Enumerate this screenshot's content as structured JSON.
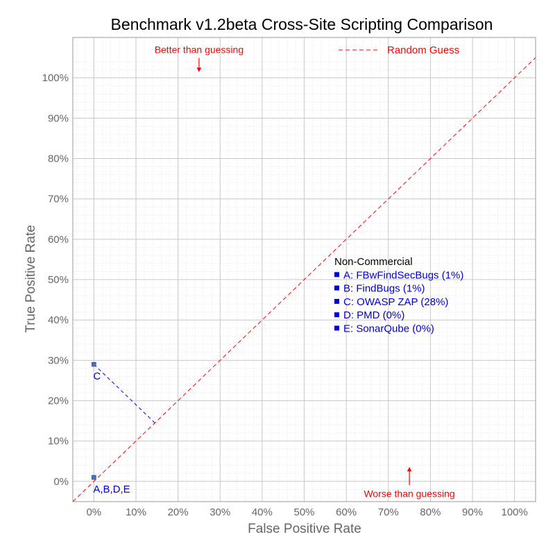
{
  "chart_data": {
    "type": "scatter",
    "title": "Benchmark v1.2beta Cross-Site Scripting Comparison",
    "xlabel": "False Positive Rate",
    "ylabel": "True Positive Rate",
    "xlim": [
      -0.05,
      1.05
    ],
    "ylim": [
      -0.05,
      1.1
    ],
    "x_ticks": [
      0,
      0.1,
      0.2,
      0.3,
      0.4,
      0.5,
      0.6,
      0.7,
      0.8,
      0.9,
      1.0
    ],
    "y_ticks": [
      0,
      0.1,
      0.2,
      0.3,
      0.4,
      0.5,
      0.6,
      0.7,
      0.8,
      0.9,
      1.0
    ],
    "x_tick_labels": [
      "0%",
      "10%",
      "20%",
      "30%",
      "40%",
      "50%",
      "60%",
      "70%",
      "80%",
      "90%",
      "100%"
    ],
    "y_tick_labels": [
      "0%",
      "10%",
      "20%",
      "30%",
      "40%",
      "50%",
      "60%",
      "70%",
      "80%",
      "90%",
      "100%"
    ],
    "grid": true,
    "points": [
      {
        "label": "A,B,D,E",
        "x": 0.0,
        "y": 0.01,
        "color": "#4a72b0"
      },
      {
        "label": "C",
        "x": 0.0,
        "y": 0.29,
        "color": "#4a72b0"
      }
    ],
    "random_guess": {
      "label": "Random Guess",
      "color": "#ff0000",
      "from": [
        -0.05,
        -0.05
      ],
      "to": [
        1.05,
        1.05
      ]
    },
    "distance_line": {
      "from": [
        0.0,
        0.29
      ],
      "to": [
        0.145,
        0.145
      ],
      "color": "#0000ff"
    },
    "annotations": {
      "better": {
        "text": "Better than guessing",
        "x": 0.25,
        "y": 1.07,
        "arrow_to": [
          0.25,
          1.015
        ],
        "color": "#ff0000"
      },
      "worse": {
        "text": "Worse than guessing",
        "x": 0.75,
        "y": -0.03,
        "arrow_to": [
          0.75,
          0.035
        ],
        "color": "#ff0000"
      }
    },
    "legend": {
      "heading": "Non-Commercial",
      "heading_color": "#000000",
      "item_color": "#0000cc",
      "items": [
        "A: FBwFindSecBugs (1%)",
        "B: FindBugs (1%)",
        "C: OWASP ZAP (28%)",
        "D: PMD (0%)",
        "E: SonarQube (0%)"
      ]
    }
  }
}
